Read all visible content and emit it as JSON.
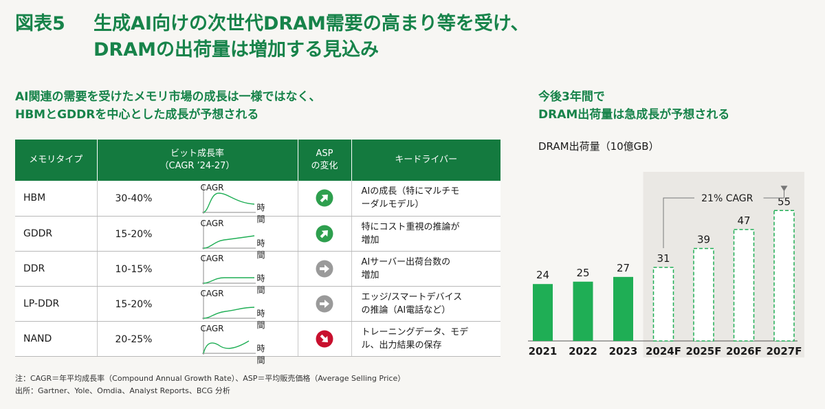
{
  "figure": {
    "number": "図表5",
    "title_line1": "生成AI向けの次世代DRAM需要の高まり等を受け、",
    "title_line2": "DRAMの出荷量は増加する見込み"
  },
  "left": {
    "subtitle_line1": "AI関連の需要を受けたメモリ市場の成長は一様ではなく、",
    "subtitle_line2": "HBMとGDDRを中心とした成長が予想される",
    "table": {
      "headers": {
        "type": "メモリタイプ",
        "growth_line1": "ビット成長率",
        "growth_line2": "（CAGR ’24-27）",
        "asp_line1": "ASP",
        "asp_line2": "の変化",
        "driver": "キードライバー"
      },
      "spark_cagr_label": "CAGR",
      "spark_time_label": "時間",
      "rows": [
        {
          "type": "HBM",
          "rate": "30-40%",
          "asp": "up",
          "driver_line1": "AIの成長（特にマルチモ",
          "driver_line2": "ーダルモデル）"
        },
        {
          "type": "GDDR",
          "rate": "15-20%",
          "asp": "up",
          "driver_line1": "特にコスト重視の推論が",
          "driver_line2": "増加"
        },
        {
          "type": "DDR",
          "rate": "10-15%",
          "asp": "flat",
          "driver_line1": "AIサーバー出荷台数の",
          "driver_line2": "増加"
        },
        {
          "type": "LP-DDR",
          "rate": "15-20%",
          "asp": "flat",
          "driver_line1": "エッジ/スマートデバイス",
          "driver_line2": "の推論（AI電話など）"
        },
        {
          "type": "NAND",
          "rate": "20-25%",
          "asp": "down",
          "driver_line1": "トレーニングデータ、モデ",
          "driver_line2": "ル、出力結果の保存"
        }
      ]
    }
  },
  "right": {
    "subtitle_line1": "今後3年間で",
    "subtitle_line2": "DRAM出荷量は急成長が予想される",
    "unit_label": "DRAM出荷量（10億GB）"
  },
  "colors": {
    "green": "#17834a",
    "bar_green": "#1fae55",
    "asp_up": "#2e9f4e",
    "asp_flat": "#9a9a9a",
    "asp_down": "#c8102e",
    "forecast_bg": "#eae8e4"
  },
  "chart_data": {
    "type": "bar",
    "categories": [
      "2021",
      "2022",
      "2023",
      "2024F",
      "2025F",
      "2026F",
      "2027F"
    ],
    "values": [
      24,
      25,
      27,
      31,
      39,
      47,
      55
    ],
    "forecast_from": "2024F",
    "annotation": "21% CAGR",
    "ylim": [
      0,
      60
    ]
  },
  "notes": {
    "note": "注：CAGR＝年平均成長率（Compound Annual Growth Rate）、ASP＝平均販売価格（Average Selling Price）",
    "source": "出所：Gartner、Yole、Omdia、Analyst Reports、BCG 分析"
  }
}
